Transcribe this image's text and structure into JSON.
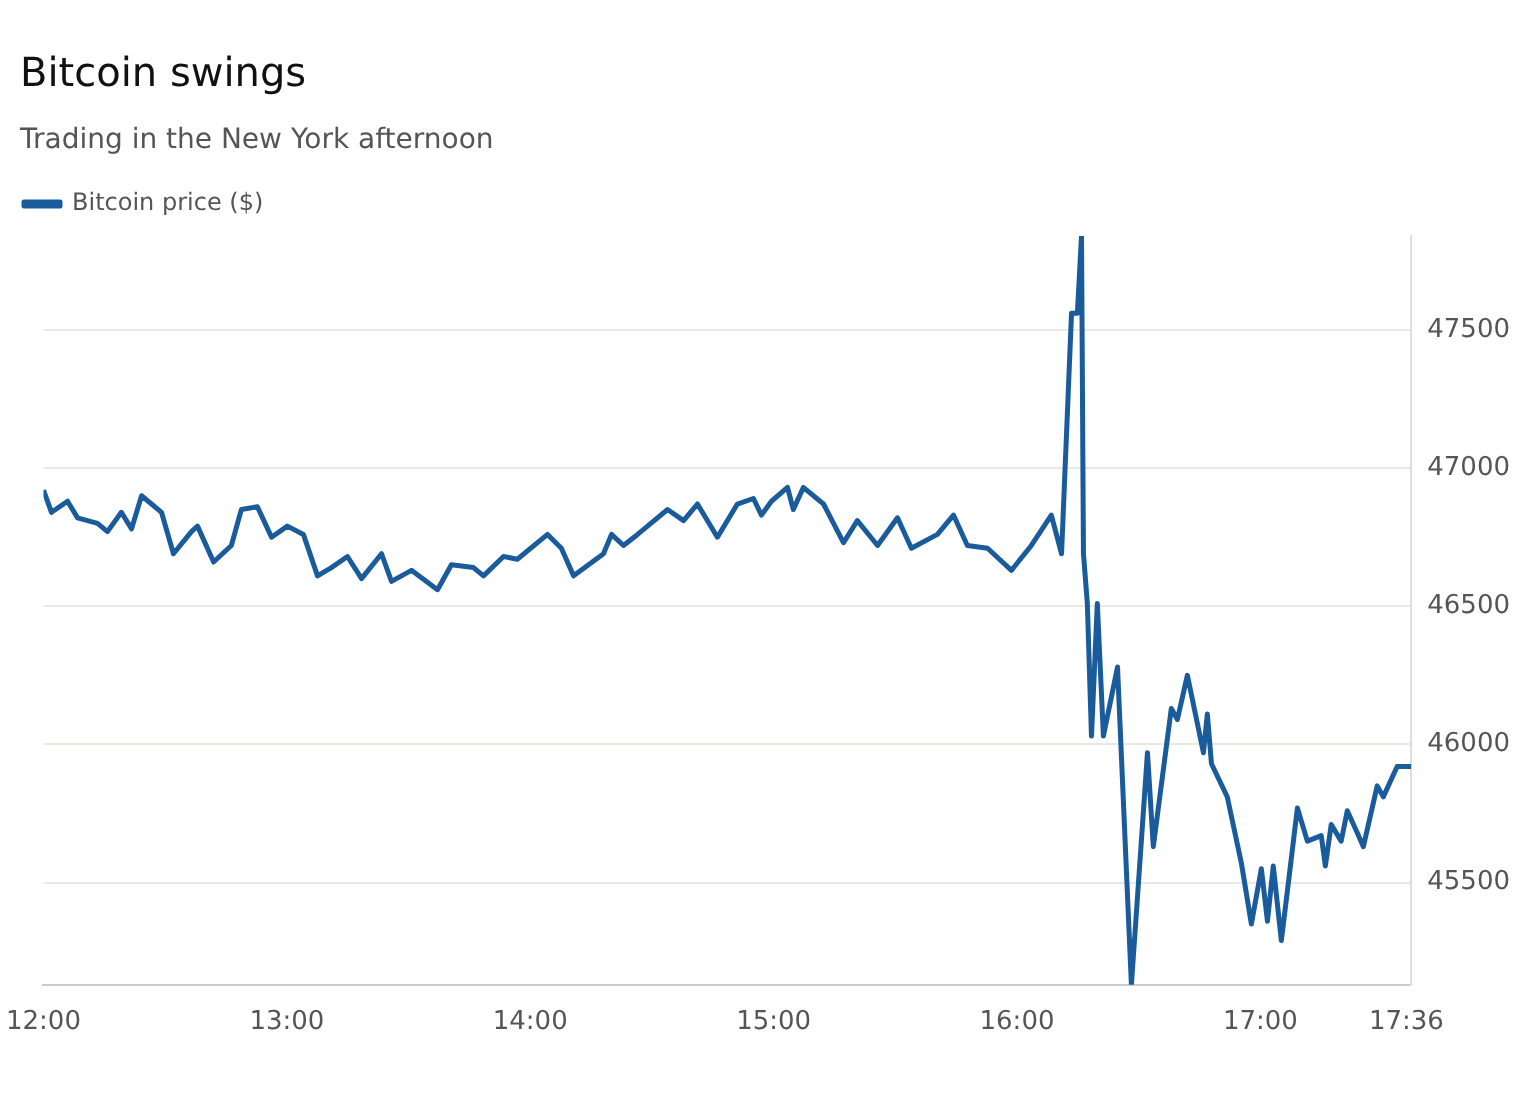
{
  "chart_data": {
    "type": "line",
    "title": "Bitcoin swings",
    "subtitle": "Trading in the New York afternoon",
    "series": [
      {
        "name": "Bitcoin price ($)",
        "color": "#1a5b9b",
        "x": [
          12.0,
          12.033,
          12.099,
          12.14,
          12.222,
          12.263,
          12.32,
          12.362,
          12.403,
          12.485,
          12.534,
          12.608,
          12.633,
          12.699,
          12.772,
          12.813,
          12.879,
          12.937,
          13.002,
          13.068,
          13.126,
          13.183,
          13.249,
          13.307,
          13.389,
          13.43,
          13.512,
          13.619,
          13.676,
          13.767,
          13.808,
          13.89,
          13.947,
          14.071,
          14.128,
          14.178,
          14.301,
          14.334,
          14.383,
          14.441,
          14.564,
          14.63,
          14.687,
          14.769,
          14.851,
          14.917,
          14.95,
          14.991,
          15.057,
          15.081,
          15.122,
          15.205,
          15.287,
          15.344,
          15.427,
          15.509,
          15.566,
          15.673,
          15.739,
          15.796,
          15.879,
          15.977,
          16.059,
          16.141,
          16.183,
          16.224,
          16.248,
          16.265,
          16.273,
          16.289,
          16.306,
          16.33,
          16.355,
          16.413,
          16.47,
          16.536,
          16.56,
          16.634,
          16.659,
          16.7,
          16.766,
          16.782,
          16.799,
          16.864,
          16.922,
          16.963,
          17.004,
          17.029,
          17.053,
          17.086,
          17.111,
          17.152,
          17.193,
          17.25,
          17.267,
          17.291,
          17.332,
          17.357,
          17.398,
          17.423,
          17.48,
          17.505,
          17.562,
          17.62
        ],
        "values": [
          46920,
          46840,
          46880,
          46820,
          46800,
          46770,
          46840,
          46780,
          46900,
          46840,
          46690,
          46770,
          46790,
          46660,
          46720,
          46850,
          46860,
          46750,
          46790,
          46760,
          46610,
          46640,
          46680,
          46600,
          46690,
          46590,
          46630,
          46560,
          46650,
          46640,
          46610,
          46680,
          46670,
          46760,
          46710,
          46610,
          46690,
          46760,
          46720,
          46760,
          46850,
          46810,
          46870,
          46750,
          46870,
          46890,
          46830,
          46880,
          46930,
          46850,
          46930,
          46870,
          46730,
          46810,
          46720,
          46820,
          46710,
          46760,
          46830,
          46720,
          46710,
          46630,
          46720,
          46830,
          46690,
          47560,
          47560,
          47840,
          46690,
          46510,
          46030,
          46510,
          46030,
          46280,
          45130,
          45970,
          45630,
          46130,
          46090,
          46250,
          45970,
          46110,
          45930,
          45810,
          45570,
          45350,
          45550,
          45360,
          45560,
          45290,
          45470,
          45770,
          45650,
          45670,
          45560,
          45710,
          45650,
          45760,
          45680,
          45630,
          45850,
          45810,
          45920,
          45920
        ]
      }
    ],
    "xlim": [
      12,
      17.62
    ],
    "xticks": [
      {
        "value": 12,
        "label": "12:00"
      },
      {
        "value": 13,
        "label": "13:00"
      },
      {
        "value": 14,
        "label": "14:00"
      },
      {
        "value": 15,
        "label": "15:00"
      },
      {
        "value": 16,
        "label": "16:00"
      },
      {
        "value": 17,
        "label": "17:00"
      },
      {
        "value": 17.6,
        "label": "17:36"
      }
    ],
    "ylim": [
      45130,
      47840
    ],
    "yticks": [
      45500,
      46000,
      46500,
      47000,
      47500
    ],
    "grid": "y",
    "legend": "top left",
    "marker": "none",
    "line_style": "solid"
  }
}
